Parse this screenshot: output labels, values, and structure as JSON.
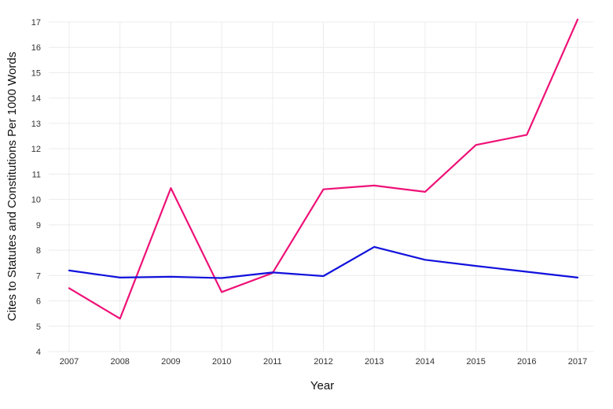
{
  "chart_data": {
    "type": "line",
    "title": "",
    "xlabel": "Year",
    "ylabel": "Cites to Statutes and Constitutions Per 1000 Words",
    "x": [
      "2007",
      "2008",
      "2009",
      "2010",
      "2011",
      "2012",
      "2013",
      "2014",
      "2015",
      "2016",
      "2017"
    ],
    "ylim": [
      4,
      17
    ],
    "yticks": [
      "4",
      "5",
      "6",
      "7",
      "8",
      "9",
      "10",
      "11",
      "12",
      "13",
      "14",
      "15",
      "16",
      "17"
    ],
    "grid": true,
    "legend": "none",
    "series": [
      {
        "color": "#ee1177",
        "values": [
          6.5,
          5.3,
          10.45,
          6.35,
          7.1,
          10.4,
          10.55,
          10.3,
          12.15,
          12.55,
          17.1
        ]
      },
      {
        "color": "#1111dd",
        "values": [
          7.2,
          6.92,
          6.95,
          6.9,
          7.12,
          6.98,
          8.13,
          7.62,
          7.38,
          7.15,
          6.92
        ]
      }
    ]
  }
}
